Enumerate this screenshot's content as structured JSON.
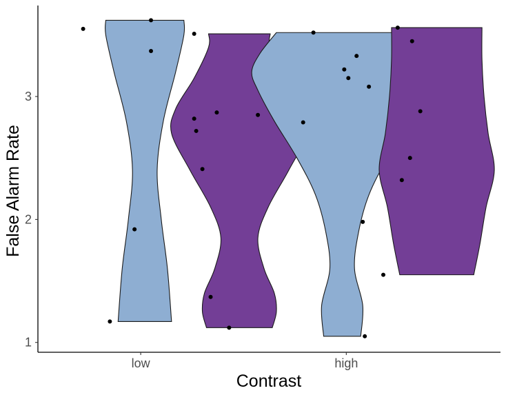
{
  "chart_data": {
    "type": "violin",
    "xlabel": "Contrast",
    "ylabel": "False Alarm Rate",
    "categories": [
      "low",
      "high"
    ],
    "ylim": [
      0.92,
      3.74
    ],
    "yticks": [
      1,
      2,
      3
    ],
    "grid": false,
    "legend": "none",
    "colors": {
      "blue": "#8eaed2",
      "purple": "#733e96",
      "outline": "#1a1a1a",
      "point": "#000000"
    },
    "violins": [
      {
        "category": "low",
        "subgroup": 1,
        "color": "#8eaed2",
        "center": 0.52,
        "range": [
          1.17,
          3.62
        ],
        "profile": [
          [
            1.17,
            0.13
          ],
          [
            1.6,
            0.11
          ],
          [
            2.0,
            0.08
          ],
          [
            2.4,
            0.06
          ],
          [
            2.8,
            0.09
          ],
          [
            3.2,
            0.15
          ],
          [
            3.5,
            0.19
          ],
          [
            3.62,
            0.19
          ]
        ],
        "points": [
          {
            "x": 0.35,
            "y": 1.17
          },
          {
            "x": 0.47,
            "y": 1.92
          },
          {
            "x": 0.55,
            "y": 3.37
          },
          {
            "x": 0.55,
            "y": 3.62
          },
          {
            "x": 0.22,
            "y": 3.55
          }
        ]
      },
      {
        "category": "low",
        "subgroup": 2,
        "color": "#733e96",
        "center": 0.98,
        "range": [
          1.12,
          3.51
        ],
        "profile": [
          [
            1.12,
            0.16
          ],
          [
            1.25,
            0.18
          ],
          [
            1.4,
            0.17
          ],
          [
            1.6,
            0.12
          ],
          [
            1.85,
            0.09
          ],
          [
            2.1,
            0.14
          ],
          [
            2.4,
            0.24
          ],
          [
            2.7,
            0.33
          ],
          [
            2.9,
            0.31
          ],
          [
            3.15,
            0.22
          ],
          [
            3.4,
            0.15
          ],
          [
            3.51,
            0.15
          ]
        ],
        "points": [
          {
            "x": 0.93,
            "y": 1.12
          },
          {
            "x": 0.84,
            "y": 1.37
          },
          {
            "x": 0.8,
            "y": 2.41
          },
          {
            "x": 0.77,
            "y": 2.72
          },
          {
            "x": 0.76,
            "y": 2.82
          },
          {
            "x": 0.87,
            "y": 2.87
          },
          {
            "x": 1.07,
            "y": 2.85
          },
          {
            "x": 0.76,
            "y": 3.51
          }
        ]
      },
      {
        "category": "high",
        "subgroup": 1,
        "color": "#8eaed2",
        "center": 1.48,
        "range": [
          1.05,
          3.52
        ],
        "profile": [
          [
            1.05,
            0.09
          ],
          [
            1.3,
            0.1
          ],
          [
            1.6,
            0.06
          ],
          [
            1.9,
            0.08
          ],
          [
            2.2,
            0.13
          ],
          [
            2.5,
            0.22
          ],
          [
            2.8,
            0.33
          ],
          [
            3.05,
            0.41
          ],
          [
            3.2,
            0.44
          ],
          [
            3.35,
            0.4
          ],
          [
            3.52,
            0.32
          ]
        ],
        "points": [
          {
            "x": 1.59,
            "y": 1.05
          },
          {
            "x": 1.58,
            "y": 1.98
          },
          {
            "x": 1.29,
            "y": 2.79
          },
          {
            "x": 1.61,
            "y": 3.08
          },
          {
            "x": 1.51,
            "y": 3.15
          },
          {
            "x": 1.49,
            "y": 3.22
          },
          {
            "x": 1.55,
            "y": 3.33
          },
          {
            "x": 1.34,
            "y": 3.52
          }
        ]
      },
      {
        "category": "high",
        "subgroup": 2,
        "color": "#733e96",
        "center": 1.94,
        "range": [
          1.55,
          3.56
        ],
        "profile": [
          [
            1.55,
            0.18
          ],
          [
            1.8,
            0.21
          ],
          [
            2.1,
            0.24
          ],
          [
            2.4,
            0.28
          ],
          [
            2.7,
            0.25
          ],
          [
            3.0,
            0.23
          ],
          [
            3.3,
            0.22
          ],
          [
            3.56,
            0.22
          ]
        ],
        "points": [
          {
            "x": 1.68,
            "y": 1.55
          },
          {
            "x": 1.77,
            "y": 2.32
          },
          {
            "x": 1.81,
            "y": 2.5
          },
          {
            "x": 1.86,
            "y": 2.88
          },
          {
            "x": 1.82,
            "y": 3.45
          },
          {
            "x": 1.75,
            "y": 3.56
          }
        ]
      }
    ]
  }
}
